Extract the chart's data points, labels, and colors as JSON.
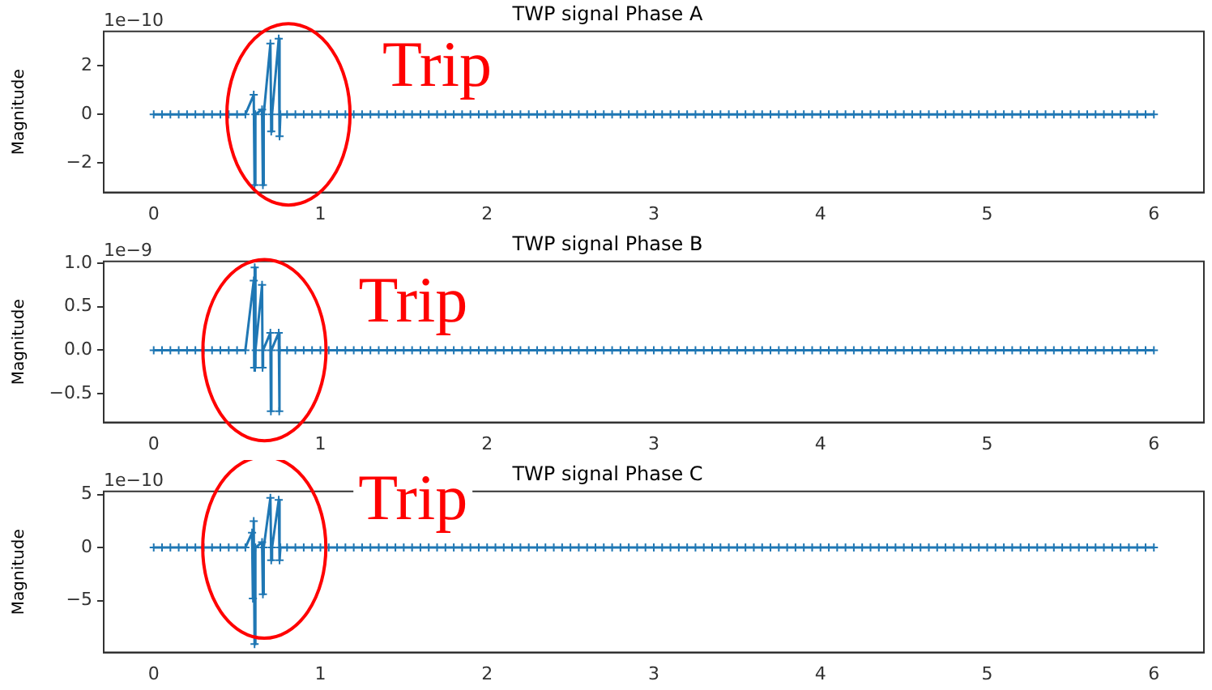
{
  "chart_data": [
    {
      "type": "line",
      "title": "TWP signal Phase A",
      "ylabel": "Magnitude",
      "marker": "cross",
      "xlim": [
        -0.3,
        6.3
      ],
      "xticks": [
        0,
        1,
        2,
        3,
        4,
        5,
        6
      ],
      "ylim": [
        -3.2,
        3.4
      ],
      "yticks": [
        {
          "value": -2,
          "label": "−2"
        },
        0,
        2
      ],
      "annotations": [
        "1e−10",
        "Trip"
      ],
      "series": [
        {
          "color": "#1f77b4",
          "x": [
            0,
            0.05,
            0.1,
            0.15,
            0.2,
            0.25,
            0.3,
            0.35,
            0.4,
            0.45,
            0.5,
            0.55,
            0.6,
            0.605,
            0.61,
            0.65,
            0.655,
            0.66,
            0.7,
            0.705,
            0.71,
            0.75,
            0.755,
            0.76,
            0.8,
            0.85,
            0.9,
            0.95,
            1,
            1.05,
            1.1,
            1.15,
            1.2,
            1.25,
            1.3,
            1.35,
            1.4,
            1.45,
            1.5,
            1.55,
            1.6,
            1.65,
            1.7,
            1.75,
            1.8,
            1.85,
            1.9,
            1.95,
            2,
            2.05,
            2.1,
            2.15,
            2.2,
            2.25,
            2.3,
            2.35,
            2.4,
            2.45,
            2.5,
            2.55,
            2.6,
            2.65,
            2.7,
            2.75,
            2.8,
            2.85,
            2.9,
            2.95,
            3,
            3.05,
            3.1,
            3.15,
            3.2,
            3.25,
            3.3,
            3.35,
            3.4,
            3.45,
            3.5,
            3.55,
            3.6,
            3.65,
            3.7,
            3.75,
            3.8,
            3.85,
            3.9,
            3.95,
            4,
            4.05,
            4.1,
            4.15,
            4.2,
            4.25,
            4.3,
            4.35,
            4.4,
            4.45,
            4.5,
            4.55,
            4.6,
            4.65,
            4.7,
            4.75,
            4.8,
            4.85,
            4.9,
            4.95,
            5,
            5.05,
            5.1,
            5.15,
            5.2,
            5.25,
            5.3,
            5.35,
            5.4,
            5.45,
            5.5,
            5.55,
            5.6,
            5.65,
            5.7,
            5.75,
            5.8,
            5.85,
            5.9,
            5.95,
            6
          ],
          "values": [
            0,
            0,
            0,
            0,
            0,
            0,
            0,
            0,
            0,
            0,
            0,
            0,
            0.8,
            -2.9,
            0,
            0.2,
            -2.9,
            0,
            2.9,
            -0.7,
            0,
            3.1,
            -0.9,
            0,
            0,
            0,
            0,
            0,
            0,
            0,
            0,
            0,
            0,
            0,
            0,
            0,
            0,
            0,
            0,
            0,
            0,
            0,
            0,
            0,
            0,
            0,
            0,
            0,
            0,
            0,
            0,
            0,
            0,
            0,
            0,
            0,
            0,
            0,
            0,
            0,
            0,
            0,
            0,
            0,
            0,
            0,
            0,
            0,
            0,
            0,
            0,
            0,
            0,
            0,
            0,
            0,
            0,
            0,
            0,
            0,
            0,
            0,
            0,
            0,
            0,
            0,
            0,
            0,
            0,
            0,
            0,
            0,
            0,
            0,
            0,
            0,
            0,
            0,
            0,
            0,
            0,
            0,
            0,
            0,
            0,
            0,
            0,
            0,
            0,
            0,
            0,
            0,
            0,
            0,
            0,
            0,
            0,
            0,
            0,
            0,
            0,
            0,
            0,
            0,
            0,
            0,
            0,
            0,
            0
          ]
        }
      ]
    },
    {
      "type": "line",
      "title": "TWP signal Phase B",
      "ylabel": "Magnitude",
      "marker": "cross",
      "xlim": [
        -0.3,
        6.3
      ],
      "xticks": [
        0,
        1,
        2,
        3,
        4,
        5,
        6
      ],
      "ylim": [
        -0.83,
        1.02
      ],
      "yticks": [
        {
          "value": -0.5,
          "label": "−0.5"
        },
        {
          "value": 0,
          "label": "0.0"
        },
        0.5,
        {
          "value": 1,
          "label": "1.0"
        }
      ],
      "annotations": [
        "1e−9",
        "Trip"
      ],
      "series": [
        {
          "color": "#1f77b4",
          "x": [
            0,
            0.05,
            0.1,
            0.15,
            0.2,
            0.25,
            0.3,
            0.35,
            0.4,
            0.45,
            0.5,
            0.55,
            0.6,
            0.603,
            0.606,
            0.609,
            0.612,
            0.65,
            0.653,
            0.656,
            0.7,
            0.703,
            0.706,
            0.75,
            0.753,
            0.756,
            0.8,
            0.85,
            0.9,
            0.95,
            1,
            1.05,
            1.1,
            1.15,
            1.2,
            1.25,
            1.3,
            1.35,
            1.4,
            1.45,
            1.5,
            1.55,
            1.6,
            1.65,
            1.7,
            1.75,
            1.8,
            1.85,
            1.9,
            1.95,
            2,
            2.05,
            2.1,
            2.15,
            2.2,
            2.25,
            2.3,
            2.35,
            2.4,
            2.45,
            2.5,
            2.55,
            2.6,
            2.65,
            2.7,
            2.75,
            2.8,
            2.85,
            2.9,
            2.95,
            3,
            3.05,
            3.1,
            3.15,
            3.2,
            3.25,
            3.3,
            3.35,
            3.4,
            3.45,
            3.5,
            3.55,
            3.6,
            3.65,
            3.7,
            3.75,
            3.8,
            3.85,
            3.9,
            3.95,
            4,
            4.05,
            4.1,
            4.15,
            4.2,
            4.25,
            4.3,
            4.35,
            4.4,
            4.45,
            4.5,
            4.55,
            4.6,
            4.65,
            4.7,
            4.75,
            4.8,
            4.85,
            4.9,
            4.95,
            5,
            5.05,
            5.1,
            5.15,
            5.2,
            5.25,
            5.3,
            5.35,
            5.4,
            5.45,
            5.5,
            5.55,
            5.6,
            5.65,
            5.7,
            5.75,
            5.8,
            5.85,
            5.9,
            5.95,
            6
          ],
          "values": [
            0,
            0,
            0,
            0,
            0,
            0,
            0,
            0,
            0,
            0,
            0,
            0,
            0.8,
            -0.2,
            0.95,
            -0.2,
            0,
            0.75,
            -0.2,
            0,
            0.2,
            -0.7,
            0,
            0.2,
            -0.7,
            0,
            0,
            0,
            0,
            0,
            0,
            0,
            0,
            0,
            0,
            0,
            0,
            0,
            0,
            0,
            0,
            0,
            0,
            0,
            0,
            0,
            0,
            0,
            0,
            0,
            0,
            0,
            0,
            0,
            0,
            0,
            0,
            0,
            0,
            0,
            0,
            0,
            0,
            0,
            0,
            0,
            0,
            0,
            0,
            0,
            0,
            0,
            0,
            0,
            0,
            0,
            0,
            0,
            0,
            0,
            0,
            0,
            0,
            0,
            0,
            0,
            0,
            0,
            0,
            0,
            0,
            0,
            0,
            0,
            0,
            0,
            0,
            0,
            0,
            0,
            0,
            0,
            0,
            0,
            0,
            0,
            0,
            0,
            0,
            0,
            0,
            0,
            0,
            0,
            0,
            0,
            0,
            0,
            0,
            0,
            0,
            0,
            0,
            0,
            0,
            0,
            0,
            0,
            0,
            0,
            0
          ]
        }
      ]
    },
    {
      "type": "line",
      "title": "TWP signal Phase C",
      "ylabel": "Magnitude",
      "marker": "cross",
      "xlim": [
        -0.3,
        6.3
      ],
      "xticks": [
        0,
        1,
        2,
        3,
        4,
        5,
        6
      ],
      "ylim": [
        -9.9,
        5.3
      ],
      "yticks": [
        {
          "value": -5,
          "label": "−5"
        },
        0,
        5
      ],
      "annotations": [
        "1e−10",
        "Trip"
      ],
      "series": [
        {
          "color": "#1f77b4",
          "x": [
            0,
            0.05,
            0.1,
            0.15,
            0.2,
            0.25,
            0.3,
            0.35,
            0.4,
            0.45,
            0.5,
            0.55,
            0.59,
            0.595,
            0.6,
            0.605,
            0.61,
            0.65,
            0.655,
            0.66,
            0.7,
            0.705,
            0.71,
            0.75,
            0.755,
            0.76,
            0.8,
            0.85,
            0.9,
            0.95,
            1,
            1.05,
            1.1,
            1.15,
            1.2,
            1.25,
            1.3,
            1.35,
            1.4,
            1.45,
            1.5,
            1.55,
            1.6,
            1.65,
            1.7,
            1.75,
            1.8,
            1.85,
            1.9,
            1.95,
            2,
            2.05,
            2.1,
            2.15,
            2.2,
            2.25,
            2.3,
            2.35,
            2.4,
            2.45,
            2.5,
            2.55,
            2.6,
            2.65,
            2.7,
            2.75,
            2.8,
            2.85,
            2.9,
            2.95,
            3,
            3.05,
            3.1,
            3.15,
            3.2,
            3.25,
            3.3,
            3.35,
            3.4,
            3.45,
            3.5,
            3.55,
            3.6,
            3.65,
            3.7,
            3.75,
            3.8,
            3.85,
            3.9,
            3.95,
            4,
            4.05,
            4.1,
            4.15,
            4.2,
            4.25,
            4.3,
            4.35,
            4.4,
            4.45,
            4.5,
            4.55,
            4.6,
            4.65,
            4.7,
            4.75,
            4.8,
            4.85,
            4.9,
            4.95,
            5,
            5.05,
            5.1,
            5.15,
            5.2,
            5.25,
            5.3,
            5.35,
            5.4,
            5.45,
            5.5,
            5.55,
            5.6,
            5.65,
            5.7,
            5.75,
            5.8,
            5.85,
            5.9,
            5.95,
            6
          ],
          "values": [
            0,
            0,
            0,
            0,
            0,
            0,
            0,
            0,
            0,
            0,
            0,
            0,
            1.4,
            -4.8,
            2.5,
            -9.1,
            0,
            0.5,
            -4.4,
            0,
            4.7,
            -1.2,
            0,
            4.5,
            -1.2,
            0,
            0,
            0,
            0,
            0,
            0,
            0,
            0,
            0,
            0,
            0,
            0,
            0,
            0,
            0,
            0,
            0,
            0,
            0,
            0,
            0,
            0,
            0,
            0,
            0,
            0,
            0,
            0,
            0,
            0,
            0,
            0,
            0,
            0,
            0,
            0,
            0,
            0,
            0,
            0,
            0,
            0,
            0,
            0,
            0,
            0,
            0,
            0,
            0,
            0,
            0,
            0,
            0,
            0,
            0,
            0,
            0,
            0,
            0,
            0,
            0,
            0,
            0,
            0,
            0,
            0,
            0,
            0,
            0,
            0,
            0,
            0,
            0,
            0,
            0,
            0,
            0,
            0,
            0,
            0,
            0,
            0,
            0,
            0,
            0,
            0,
            0,
            0,
            0,
            0,
            0,
            0,
            0,
            0,
            0,
            0,
            0,
            0,
            0,
            0,
            0,
            0,
            0,
            0,
            0,
            0
          ]
        }
      ]
    }
  ]
}
